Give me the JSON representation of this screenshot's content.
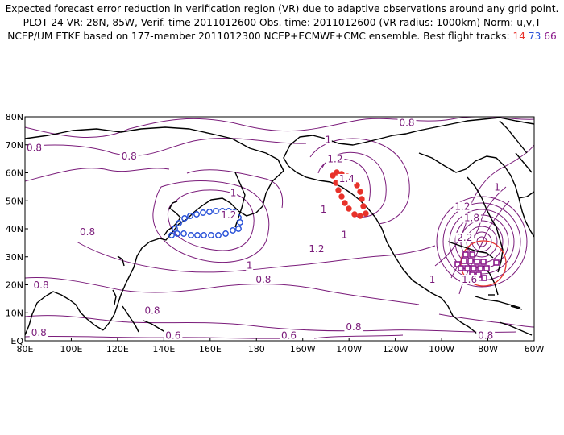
{
  "header": {
    "line1": "Expected forecast error reduction in verification region (VR) due to adaptive observations around any grid point.",
    "line2": "PLOT 24 VR: 28N, 85W, Verif. time 2011012600 Obs. time: 2011012600 (VR radius: 1000km) Norm: u,v,T",
    "line3": "NCEP/UM ETKF based on 177-member 2011012300 NCEP+ECMWF+CMC ensemble. Best flight tracks:",
    "track_a": "14",
    "track_b": "73",
    "track_c": "66"
  },
  "axes": {
    "lon_labels": [
      "80E",
      "100E",
      "120E",
      "140E",
      "160E",
      "180",
      "160W",
      "140W",
      "120W",
      "100W",
      "80W",
      "60W"
    ],
    "lat_labels": [
      "EQ",
      "10N",
      "20N",
      "30N",
      "40N",
      "50N",
      "60N",
      "70N",
      "80N"
    ]
  },
  "contour_labels": [
    {
      "text": "0.8",
      "lon": -115,
      "lat": 77
    },
    {
      "text": "0.8",
      "lon": 84,
      "lat": 68
    },
    {
      "text": "0.8",
      "lon": 125,
      "lat": 65
    },
    {
      "text": "1",
      "lon": 170,
      "lat": 52
    },
    {
      "text": "1",
      "lon": -149,
      "lat": 71
    },
    {
      "text": "1.2",
      "lon": -146,
      "lat": 64
    },
    {
      "text": "1.4",
      "lon": -141,
      "lat": 57
    },
    {
      "text": "1.2",
      "lon": 168,
      "lat": 44
    },
    {
      "text": "0.8",
      "lon": 107,
      "lat": 38
    },
    {
      "text": "1.2",
      "lon": -154,
      "lat": 32
    },
    {
      "text": "1",
      "lon": -142,
      "lat": 37
    },
    {
      "text": "1",
      "lon": -151,
      "lat": 46
    },
    {
      "text": "1",
      "lon": 177,
      "lat": 26
    },
    {
      "text": "0.8",
      "lon": -177,
      "lat": 21
    },
    {
      "text": "0.8",
      "lon": 87,
      "lat": 19
    },
    {
      "text": "0.8",
      "lon": 135,
      "lat": 10
    },
    {
      "text": "0.8",
      "lon": 86,
      "lat": 2
    },
    {
      "text": "0.6",
      "lon": 144,
      "lat": 1
    },
    {
      "text": "0.6",
      "lon": -166,
      "lat": 1
    },
    {
      "text": "0.8",
      "lon": -138,
      "lat": 4
    },
    {
      "text": "1",
      "lon": -104,
      "lat": 21
    },
    {
      "text": "1.2",
      "lon": -91,
      "lat": 47
    },
    {
      "text": "1.8",
      "lon": -87,
      "lat": 43
    },
    {
      "text": "2.2",
      "lon": -90,
      "lat": 36
    },
    {
      "text": "1.6",
      "lon": -88,
      "lat": 21
    },
    {
      "text": "1",
      "lon": -76,
      "lat": 54
    },
    {
      "text": "0.8",
      "lon": -81,
      "lat": 1
    }
  ],
  "verification_region": {
    "lat": 28,
    "lon": -85,
    "radius_km": 1000
  },
  "colors": {
    "contour": "#7a1b7a",
    "track14": "#e8322a",
    "track73": "#2a52d8",
    "track66": "#8b1a8b",
    "vr": "#e8322a",
    "land": "#000000"
  }
}
